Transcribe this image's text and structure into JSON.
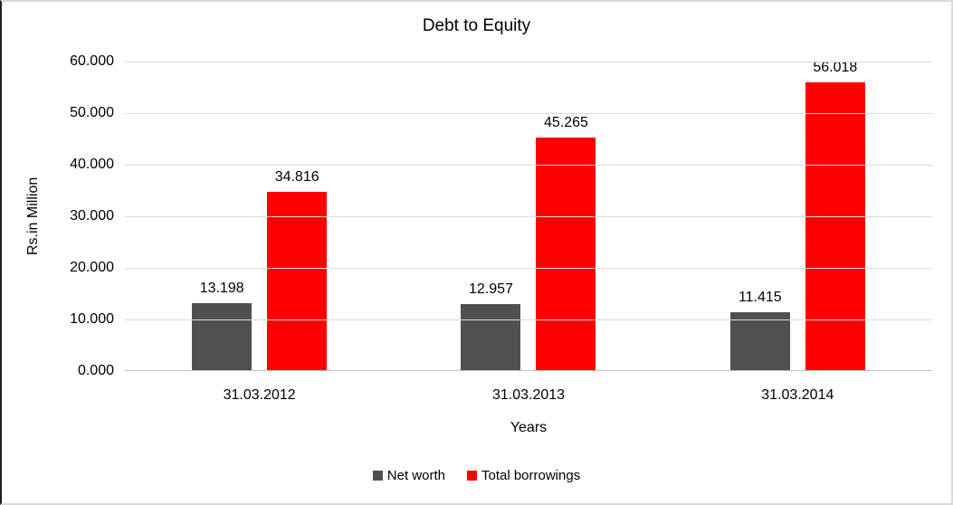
{
  "chart_data": {
    "type": "bar",
    "title": "Debt to Equity",
    "xlabel": "Years",
    "ylabel": "Rs.in Million",
    "categories": [
      "31.03.2012",
      "31.03.2013",
      "31.03.2014"
    ],
    "series": [
      {
        "name": "Net worth",
        "color": "#505050",
        "values": [
          13.198,
          12.957,
          11.415
        ],
        "labels": [
          "13.198",
          "12.957",
          "11.415"
        ]
      },
      {
        "name": "Total borrowings",
        "color": "#ff0000",
        "values": [
          34.816,
          45.265,
          56.018
        ],
        "labels": [
          "34.816",
          "45.265",
          "56.018"
        ]
      }
    ],
    "ylim": [
      0,
      60
    ],
    "ytick_step": 10,
    "yticks": [
      "0.000",
      "10.000",
      "20.000",
      "30.000",
      "40.000",
      "50.000",
      "60.000"
    ],
    "grid": true,
    "legend_position": "bottom"
  }
}
